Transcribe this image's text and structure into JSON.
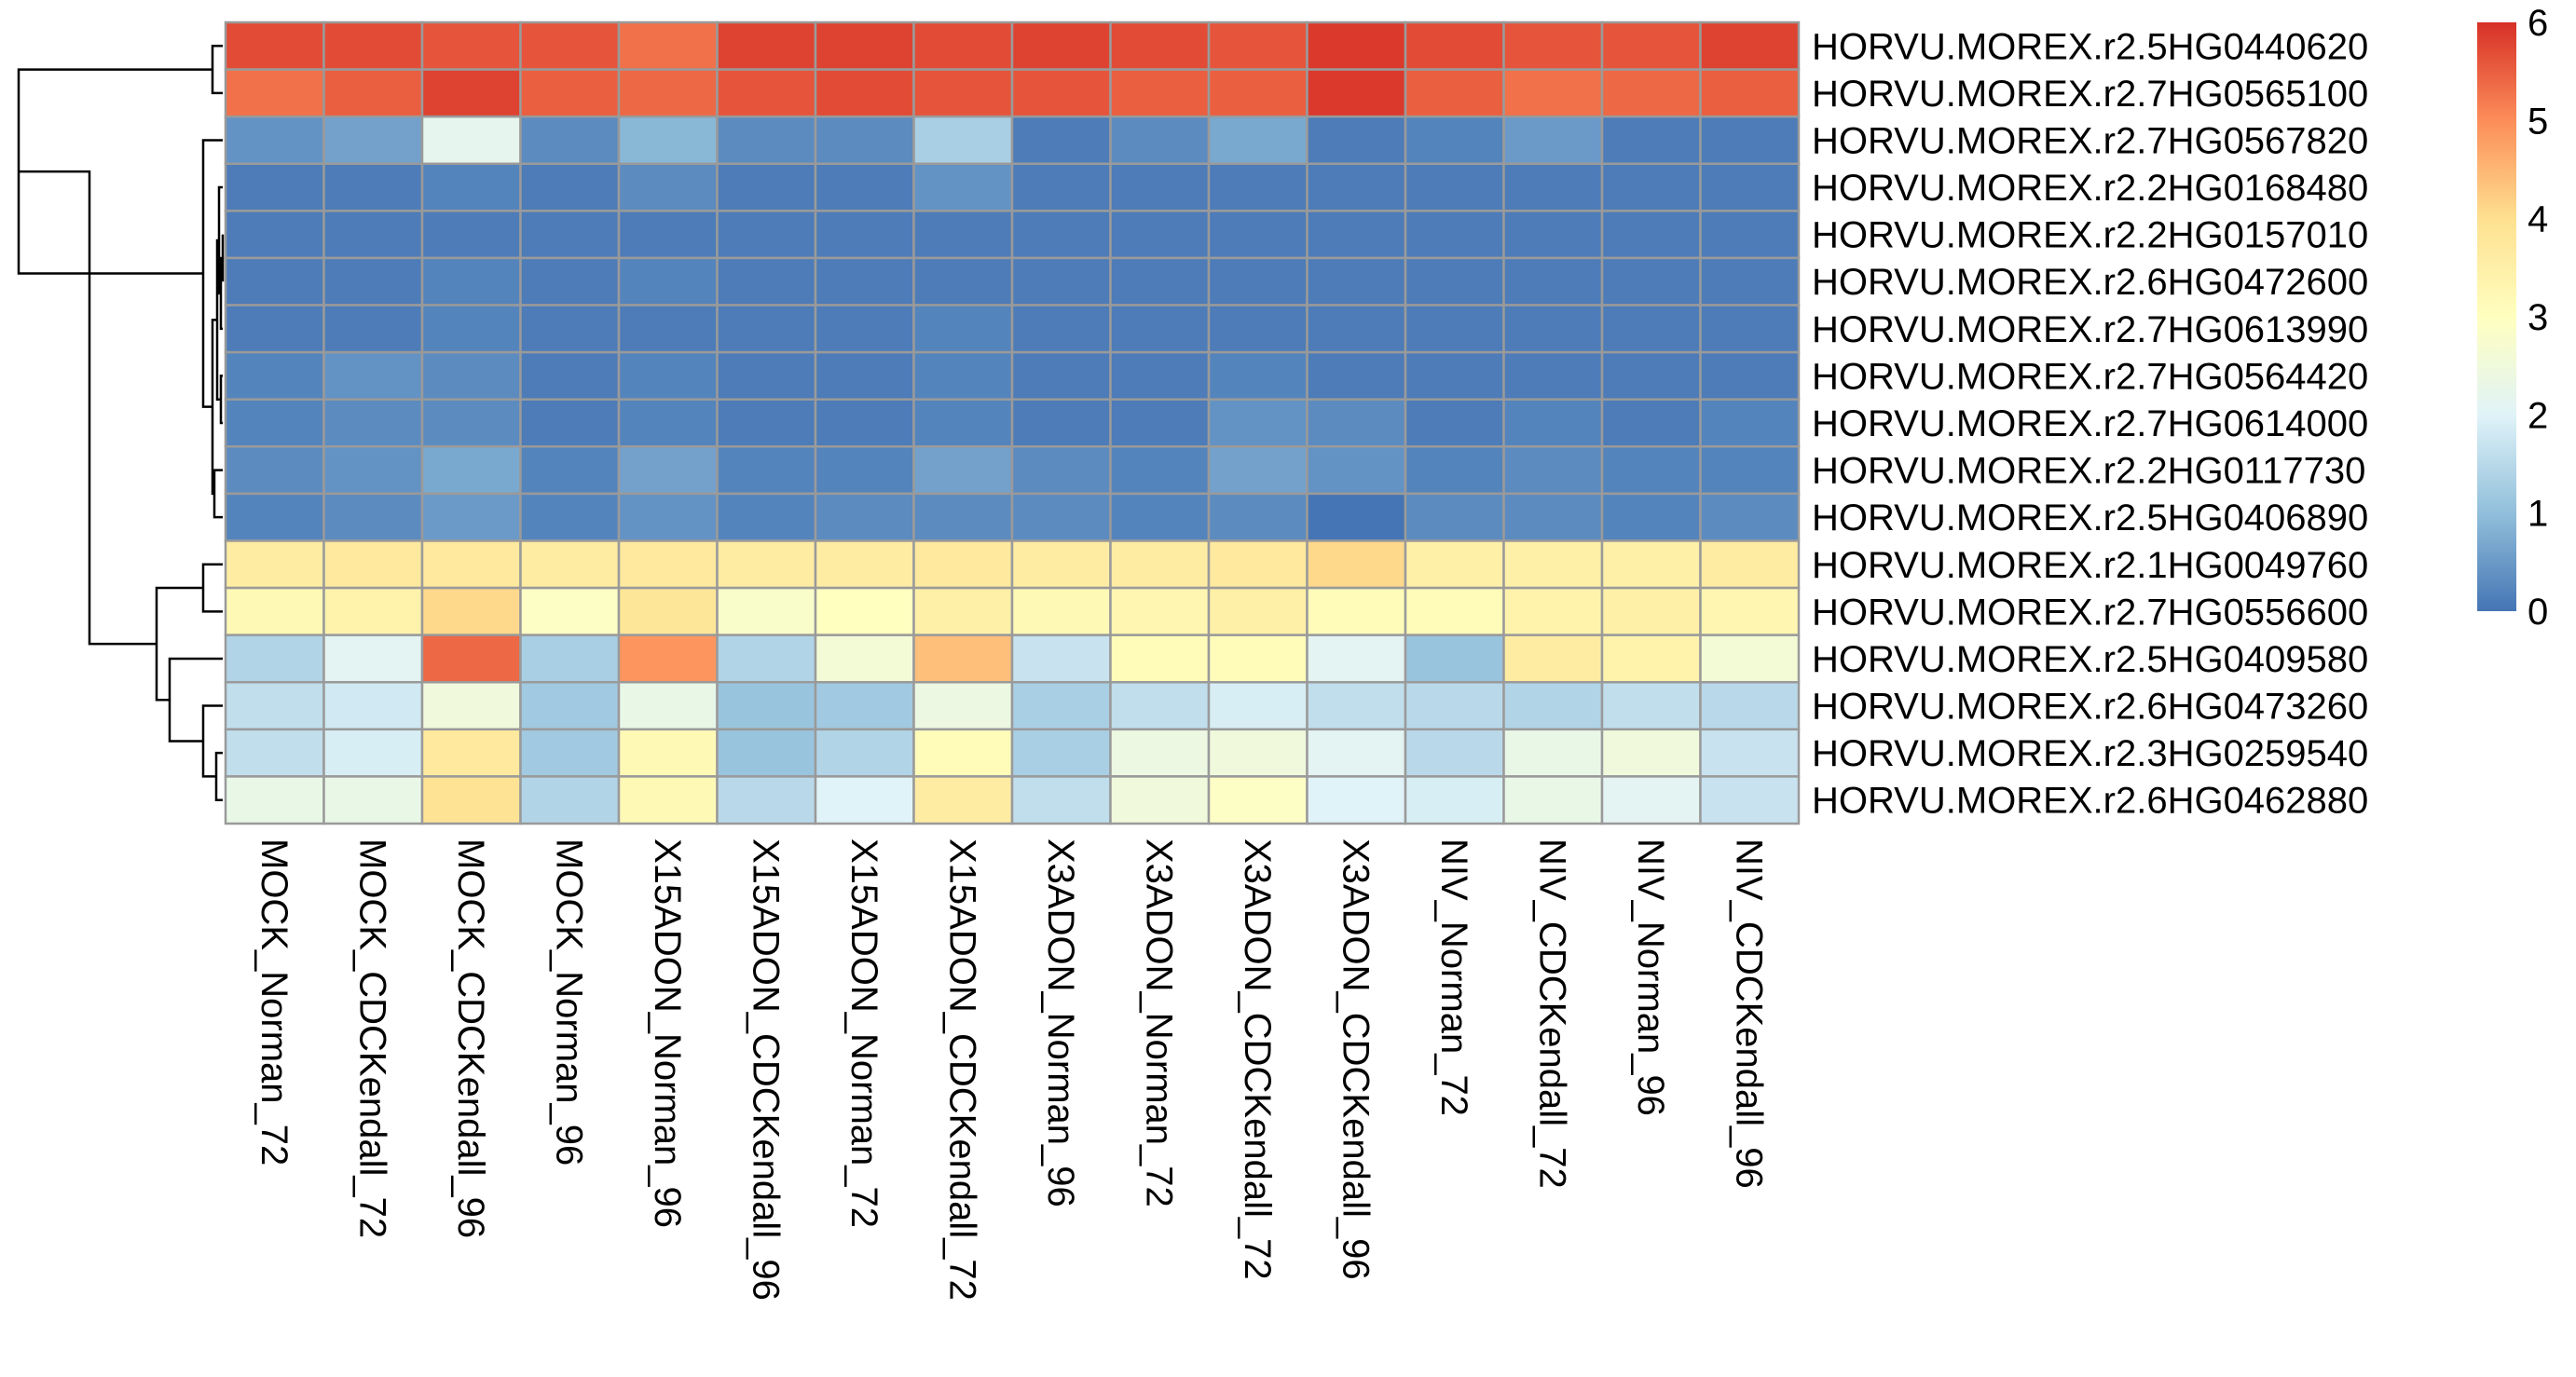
{
  "chart_data": {
    "type": "heatmap",
    "rows": [
      "HORVU.MOREX.r2.5HG0440620",
      "HORVU.MOREX.r2.7HG0565100",
      "HORVU.MOREX.r2.7HG0567820",
      "HORVU.MOREX.r2.2HG0168480",
      "HORVU.MOREX.r2.2HG0157010",
      "HORVU.MOREX.r2.6HG0472600",
      "HORVU.MOREX.r2.7HG0613990",
      "HORVU.MOREX.r2.7HG0564420",
      "HORVU.MOREX.r2.7HG0614000",
      "HORVU.MOREX.r2.2HG0117730",
      "HORVU.MOREX.r2.5HG0406890",
      "HORVU.MOREX.r2.1HG0049760",
      "HORVU.MOREX.r2.7HG0556600",
      "HORVU.MOREX.r2.5HG0409580",
      "HORVU.MOREX.r2.6HG0473260",
      "HORVU.MOREX.r2.3HG0259540",
      "HORVU.MOREX.r2.6HG0462880"
    ],
    "columns": [
      "MOCK_Norman_72",
      "MOCK_CDCKendall_72",
      "MOCK_CDCKendall_96",
      "MOCK_Norman_96",
      "X15ADON_Norman_96",
      "X15ADON_CDCKendall_96",
      "X15ADON_Norman_72",
      "X15ADON_CDCKendall_72",
      "X3ADON_Norman_96",
      "X3ADON_Norman_72",
      "X3ADON_CDCKendall_72",
      "X3ADON_CDCKendall_96",
      "NIV_Norman_72",
      "NIV_CDCKendall_72",
      "NIV_Norman_96",
      "NIV_CDCKendall_96"
    ],
    "values": [
      [
        5.7,
        5.7,
        5.6,
        5.6,
        5.3,
        5.8,
        5.8,
        5.7,
        5.8,
        5.7,
        5.6,
        5.9,
        5.7,
        5.6,
        5.6,
        5.8
      ],
      [
        5.3,
        5.5,
        5.8,
        5.5,
        5.4,
        5.6,
        5.7,
        5.6,
        5.6,
        5.5,
        5.5,
        5.9,
        5.5,
        5.3,
        5.4,
        5.5
      ],
      [
        0.4,
        0.6,
        2.2,
        0.3,
        0.9,
        0.3,
        0.3,
        1.3,
        0.1,
        0.3,
        0.7,
        0.1,
        0.2,
        0.5,
        0.1,
        0.1
      ],
      [
        0.1,
        0.1,
        0.2,
        0.1,
        0.3,
        0.1,
        0.1,
        0.4,
        0.1,
        0.1,
        0.1,
        0.1,
        0.1,
        0.1,
        0.1,
        0.1
      ],
      [
        0.1,
        0.1,
        0.1,
        0.1,
        0.1,
        0.1,
        0.1,
        0.1,
        0.1,
        0.1,
        0.1,
        0.1,
        0.1,
        0.1,
        0.1,
        0.1
      ],
      [
        0.1,
        0.1,
        0.2,
        0.1,
        0.2,
        0.1,
        0.1,
        0.1,
        0.1,
        0.1,
        0.1,
        0.1,
        0.1,
        0.1,
        0.1,
        0.1
      ],
      [
        0.1,
        0.1,
        0.2,
        0.1,
        0.1,
        0.1,
        0.1,
        0.2,
        0.1,
        0.1,
        0.1,
        0.1,
        0.1,
        0.1,
        0.1,
        0.1
      ],
      [
        0.2,
        0.4,
        0.3,
        0.1,
        0.2,
        0.1,
        0.1,
        0.2,
        0.1,
        0.1,
        0.2,
        0.1,
        0.1,
        0.1,
        0.1,
        0.1
      ],
      [
        0.2,
        0.3,
        0.3,
        0.1,
        0.2,
        0.1,
        0.1,
        0.2,
        0.1,
        0.1,
        0.4,
        0.3,
        0.1,
        0.2,
        0.1,
        0.2
      ],
      [
        0.3,
        0.4,
        0.7,
        0.2,
        0.6,
        0.2,
        0.2,
        0.6,
        0.3,
        0.2,
        0.6,
        0.4,
        0.2,
        0.3,
        0.2,
        0.2
      ],
      [
        0.2,
        0.3,
        0.5,
        0.2,
        0.4,
        0.2,
        0.3,
        0.3,
        0.3,
        0.2,
        0.3,
        0.0,
        0.3,
        0.3,
        0.2,
        0.3
      ],
      [
        3.6,
        3.7,
        3.7,
        3.6,
        3.7,
        3.6,
        3.6,
        3.7,
        3.6,
        3.6,
        3.7,
        4.1,
        3.5,
        3.5,
        3.5,
        3.6
      ],
      [
        3.2,
        3.4,
        4.1,
        2.9,
        3.8,
        2.8,
        3.0,
        3.5,
        3.2,
        3.3,
        3.5,
        3.1,
        3.1,
        3.4,
        3.5,
        3.3
      ],
      [
        1.4,
        2.1,
        5.4,
        1.3,
        4.9,
        1.4,
        2.6,
        4.4,
        1.7,
        3.1,
        3.1,
        2.1,
        1.1,
        3.6,
        3.4,
        2.6
      ],
      [
        1.6,
        1.8,
        2.5,
        1.2,
        2.3,
        1.1,
        1.2,
        2.4,
        1.3,
        1.6,
        1.9,
        1.6,
        1.5,
        1.4,
        1.6,
        1.5
      ],
      [
        1.6,
        1.9,
        3.7,
        1.2,
        3.2,
        1.1,
        1.4,
        3.1,
        1.3,
        2.4,
        2.5,
        2.1,
        1.5,
        2.3,
        2.5,
        1.7
      ],
      [
        2.3,
        2.3,
        3.9,
        1.4,
        3.2,
        1.5,
        2.0,
        3.6,
        1.6,
        2.5,
        2.9,
        2.0,
        1.9,
        2.3,
        2.1,
        1.7
      ]
    ],
    "colorbar": {
      "min": 0,
      "max": 6,
      "ticks": [
        "0",
        "1",
        "2",
        "3",
        "4",
        "5",
        "6"
      ]
    },
    "colors": [
      "#4575B4",
      "#91BFDB",
      "#E0F3F8",
      "#FFFFBF",
      "#FEE090",
      "#FC8D59",
      "#D73027"
    ],
    "row_dendrogram": true,
    "column_dendrogram": false
  }
}
